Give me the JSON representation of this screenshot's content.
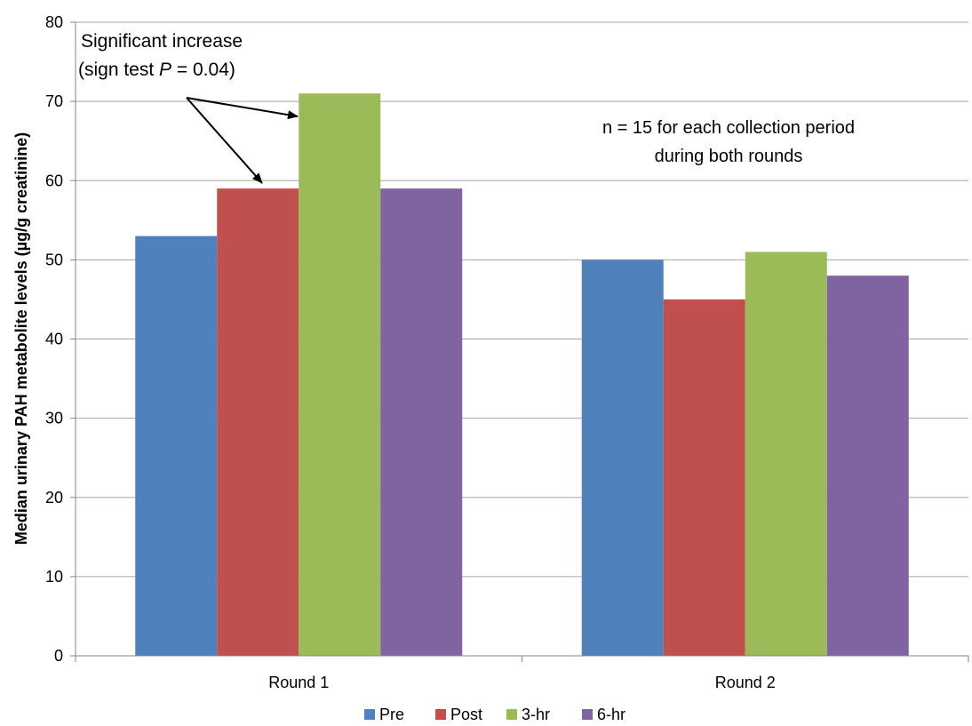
{
  "chart_data": {
    "type": "bar",
    "title": "",
    "xlabel": "",
    "ylabel": "Median urinary PAH metabolite levels (µg/g creatinine)",
    "ylim": [
      0,
      80
    ],
    "yticks": [
      0,
      10,
      20,
      30,
      40,
      50,
      60,
      70,
      80
    ],
    "categories": [
      "Round 1",
      "Round 2"
    ],
    "series": [
      {
        "name": "Pre",
        "color": "#4F81BD",
        "values": [
          53,
          50
        ]
      },
      {
        "name": "Post",
        "color": "#C0504D",
        "values": [
          59,
          45
        ]
      },
      {
        "name": "3-hr",
        "color": "#9BBB59",
        "values": [
          71,
          51
        ]
      },
      {
        "name": "6-hr",
        "color": "#8064A2",
        "values": [
          59,
          48
        ]
      }
    ],
    "grid": true,
    "legend_position": "bottom",
    "annotations": {
      "significance_line1": "Significant increase",
      "significance_line2_prefix": "(sign test ",
      "significance_line2_italic": "P",
      "significance_line2_suffix": " = 0.04)",
      "note_line1": "n = 15 for each collection period",
      "note_line2": "during both rounds"
    }
  }
}
